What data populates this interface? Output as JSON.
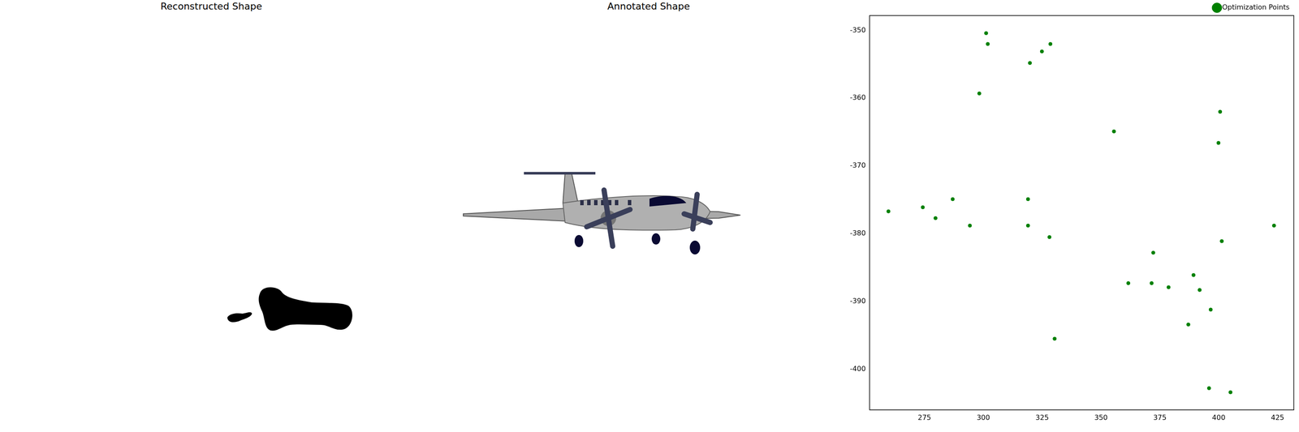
{
  "images": [
    {
      "title": "Reconstructed Shape"
    },
    {
      "title": "Annotated Shape"
    }
  ],
  "chart_data": {
    "type": "scatter",
    "series": [
      {
        "name": "Optimization Points",
        "color": "green",
        "marker": "circle",
        "x": [
          259.7,
          274.3,
          279.7,
          287.0,
          294.3,
          301.2,
          301.9,
          298.3,
          319.8,
          324.9,
          328.5,
          319.0,
          319.0,
          328.1,
          330.3,
          355.5,
          400.6,
          399.9,
          401.3,
          423.5,
          372.2,
          361.6,
          371.5,
          378.7,
          389.3,
          391.9,
          396.6,
          387.1,
          395.9,
          405.0
        ],
        "values": [
          -376.7,
          -376.1,
          -377.7,
          -374.9,
          -378.8,
          -350.4,
          -352.0,
          -359.3,
          -354.8,
          -353.1,
          -352.0,
          -374.9,
          -378.8,
          -380.5,
          -395.5,
          -364.9,
          -362.0,
          -366.6,
          -381.1,
          -378.8,
          -382.8,
          -387.3,
          -387.3,
          -387.9,
          -386.1,
          -388.3,
          -391.2,
          -393.4,
          -402.8,
          -403.4
        ]
      }
    ],
    "xlim": [
      251.7,
      431.9
    ],
    "xticks": [
      275,
      300,
      325,
      350,
      375,
      400,
      425
    ],
    "ylim": [
      -406.0,
      -347.8
    ],
    "yticks": [
      -350,
      -360,
      -370,
      -380,
      -390,
      -400
    ],
    "legend": "upper right",
    "grid": false
  }
}
